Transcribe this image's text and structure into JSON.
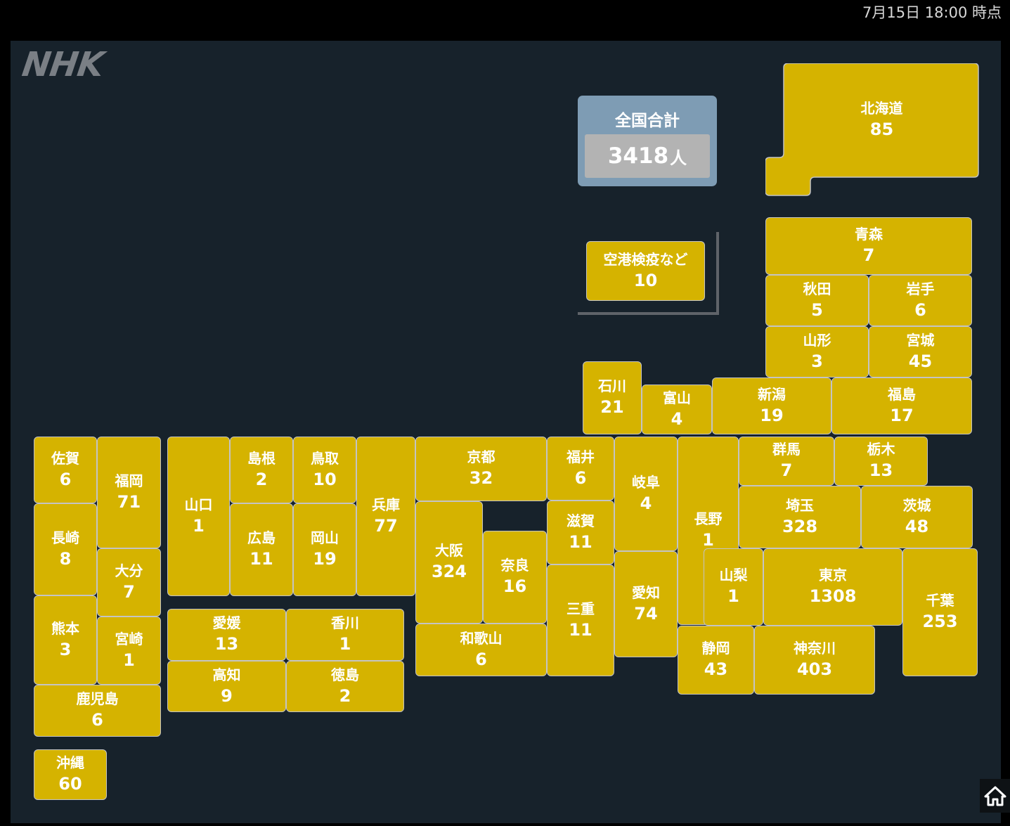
{
  "header": {
    "timestamp": "7月15日 18:00 時点"
  },
  "logo": {
    "text": "NHK"
  },
  "total": {
    "label": "全国合計",
    "value": "3418",
    "unit": "人"
  },
  "colors": {
    "tile": "#d5b300",
    "background": "#17222b",
    "total_box": "#7e9cb4"
  },
  "prefectures": [
    {
      "name": "北海道",
      "count": "85"
    },
    {
      "name": "空港検疫など",
      "count": "10"
    },
    {
      "name": "青森",
      "count": "7"
    },
    {
      "name": "秋田",
      "count": "5"
    },
    {
      "name": "岩手",
      "count": "6"
    },
    {
      "name": "山形",
      "count": "3"
    },
    {
      "name": "宮城",
      "count": "45"
    },
    {
      "name": "石川",
      "count": "21"
    },
    {
      "name": "富山",
      "count": "4"
    },
    {
      "name": "新潟",
      "count": "19"
    },
    {
      "name": "福島",
      "count": "17"
    },
    {
      "name": "佐賀",
      "count": "6"
    },
    {
      "name": "福岡",
      "count": "71"
    },
    {
      "name": "長崎",
      "count": "8"
    },
    {
      "name": "大分",
      "count": "7"
    },
    {
      "name": "熊本",
      "count": "3"
    },
    {
      "name": "宮崎",
      "count": "1"
    },
    {
      "name": "鹿児島",
      "count": "6"
    },
    {
      "name": "沖縄",
      "count": "60"
    },
    {
      "name": "山口",
      "count": "1"
    },
    {
      "name": "島根",
      "count": "2"
    },
    {
      "name": "鳥取",
      "count": "10"
    },
    {
      "name": "広島",
      "count": "11"
    },
    {
      "name": "岡山",
      "count": "19"
    },
    {
      "name": "兵庫",
      "count": "77"
    },
    {
      "name": "愛媛",
      "count": "13"
    },
    {
      "name": "香川",
      "count": "1"
    },
    {
      "name": "高知",
      "count": "9"
    },
    {
      "name": "徳島",
      "count": "2"
    },
    {
      "name": "京都",
      "count": "32"
    },
    {
      "name": "大阪",
      "count": "324"
    },
    {
      "name": "奈良",
      "count": "16"
    },
    {
      "name": "和歌山",
      "count": "6"
    },
    {
      "name": "福井",
      "count": "6"
    },
    {
      "name": "滋賀",
      "count": "11"
    },
    {
      "name": "三重",
      "count": "11"
    },
    {
      "name": "岐阜",
      "count": "4"
    },
    {
      "name": "愛知",
      "count": "74"
    },
    {
      "name": "長野",
      "count": "1"
    },
    {
      "name": "群馬",
      "count": "7"
    },
    {
      "name": "栃木",
      "count": "13"
    },
    {
      "name": "埼玉",
      "count": "328"
    },
    {
      "name": "茨城",
      "count": "48"
    },
    {
      "name": "山梨",
      "count": "1"
    },
    {
      "name": "東京",
      "count": "1308"
    },
    {
      "name": "千葉",
      "count": "253"
    },
    {
      "name": "静岡",
      "count": "43"
    },
    {
      "name": "神奈川",
      "count": "403"
    }
  ]
}
